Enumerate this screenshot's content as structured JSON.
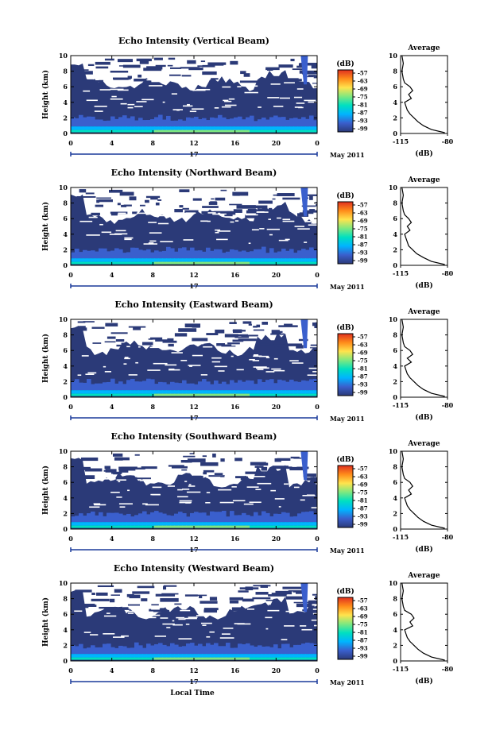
{
  "chart_data": [
    {
      "type": "heatmap",
      "title": "Echo Intensity (Vertical Beam)",
      "ylabel": "Height (km)",
      "xticks": [
        "0",
        "4",
        "8",
        "12",
        "16",
        "20",
        "0"
      ],
      "yticks": [
        "0",
        "2",
        "4",
        "6",
        "8",
        "10"
      ],
      "xlim": [
        0,
        24
      ],
      "ylim": [
        0,
        10
      ],
      "date_day": "17",
      "date_month": "May 2011",
      "colorbar": {
        "unit": "(dB)",
        "ticks": [
          "-57",
          "-63",
          "-69",
          "-75",
          "-81",
          "-87",
          "-93",
          "-99"
        ]
      },
      "profile": {
        "title": "Average",
        "xlabel": "(dB)",
        "xticks": [
          "-115",
          "-80"
        ],
        "xlim": [
          -115,
          -80
        ],
        "ylim": [
          0,
          10
        ],
        "yticks": [
          "0",
          "2",
          "4",
          "6",
          "8",
          "10"
        ],
        "height": [
          0.1,
          0.5,
          1,
          1.5,
          2,
          2.5,
          3,
          3.5,
          4,
          4.5,
          5,
          5.5,
          6,
          6.5,
          7,
          8,
          9,
          10
        ],
        "dB": [
          -82,
          -92,
          -98,
          -102,
          -105,
          -108,
          -110,
          -111,
          -112,
          -107,
          -109,
          -106,
          -108,
          -112,
          -113,
          -114,
          -113,
          -114
        ]
      }
    },
    {
      "type": "heatmap",
      "title": "Echo Intensity (Northward Beam)",
      "ylabel": "Height (km)",
      "xticks": [
        "0",
        "4",
        "8",
        "12",
        "16",
        "20",
        "0"
      ],
      "yticks": [
        "0",
        "2",
        "4",
        "6",
        "8",
        "10"
      ],
      "xlim": [
        0,
        24
      ],
      "ylim": [
        0,
        10
      ],
      "date_day": "17",
      "date_month": "May 2011",
      "colorbar": {
        "unit": "(dB)",
        "ticks": [
          "-57",
          "-63",
          "-69",
          "-75",
          "-81",
          "-87",
          "-93",
          "-99"
        ]
      },
      "profile": {
        "title": "Average",
        "xlabel": "(dB)",
        "xticks": [
          "-115",
          "-80"
        ],
        "xlim": [
          -115,
          -80
        ],
        "ylim": [
          0,
          10
        ],
        "yticks": [
          "0",
          "2",
          "4",
          "6",
          "8",
          "10"
        ],
        "height": [
          0.1,
          0.5,
          1,
          1.5,
          2,
          2.5,
          3,
          3.5,
          4,
          4.5,
          5,
          5.5,
          6,
          6.5,
          7,
          8,
          9,
          10
        ],
        "dB": [
          -82,
          -92,
          -98,
          -103,
          -106,
          -109,
          -110,
          -111,
          -112,
          -108,
          -110,
          -107,
          -109,
          -112,
          -113,
          -114,
          -113,
          -114
        ]
      }
    },
    {
      "type": "heatmap",
      "title": "Echo Intensity (Eastward Beam)",
      "ylabel": "Height (km)",
      "xticks": [
        "0",
        "4",
        "8",
        "12",
        "16",
        "20",
        "0"
      ],
      "yticks": [
        "0",
        "2",
        "4",
        "6",
        "8",
        "10"
      ],
      "xlim": [
        0,
        24
      ],
      "ylim": [
        0,
        10
      ],
      "date_day": "17",
      "date_month": "May 2011",
      "colorbar": {
        "unit": "(dB)",
        "ticks": [
          "-57",
          "-63",
          "-69",
          "-75",
          "-81",
          "-87",
          "-93",
          "-99"
        ]
      },
      "profile": {
        "title": "Average",
        "xlabel": "(dB)",
        "xticks": [
          "-115",
          "-80"
        ],
        "xlim": [
          -115,
          -80
        ],
        "ylim": [
          0,
          10
        ],
        "yticks": [
          "0",
          "2",
          "4",
          "6",
          "8",
          "10"
        ],
        "height": [
          0.1,
          0.5,
          1,
          1.5,
          2,
          2.5,
          3,
          3.5,
          4,
          4.5,
          5,
          5.5,
          6,
          6.5,
          7,
          8,
          9,
          10
        ],
        "dB": [
          -82,
          -92,
          -98,
          -102,
          -105,
          -108,
          -110,
          -111,
          -112,
          -107,
          -110,
          -106,
          -108,
          -112,
          -113,
          -114,
          -113,
          -114
        ]
      }
    },
    {
      "type": "heatmap",
      "title": "Echo Intensity (Southward Beam)",
      "ylabel": "Height (km)",
      "xticks": [
        "0",
        "4",
        "8",
        "12",
        "16",
        "20",
        "0"
      ],
      "yticks": [
        "0",
        "2",
        "4",
        "6",
        "8",
        "10"
      ],
      "xlim": [
        0,
        24
      ],
      "ylim": [
        0,
        10
      ],
      "date_day": "17",
      "date_month": "May 2011",
      "colorbar": {
        "unit": "(dB)",
        "ticks": [
          "-57",
          "-63",
          "-69",
          "-75",
          "-81",
          "-87",
          "-93",
          "-99"
        ]
      },
      "profile": {
        "title": "Average",
        "xlabel": "(dB)",
        "xticks": [
          "-115",
          "-80"
        ],
        "xlim": [
          -115,
          -80
        ],
        "ylim": [
          0,
          10
        ],
        "yticks": [
          "0",
          "2",
          "4",
          "6",
          "8",
          "10"
        ],
        "height": [
          0.1,
          0.5,
          1,
          1.5,
          2,
          2.5,
          3,
          3.5,
          4,
          4.5,
          5,
          5.5,
          6,
          6.5,
          7,
          8,
          9,
          10
        ],
        "dB": [
          -82,
          -92,
          -98,
          -102,
          -105,
          -108,
          -110,
          -111,
          -112,
          -107,
          -109,
          -106,
          -108,
          -112,
          -113,
          -114,
          -113,
          -114
        ]
      }
    },
    {
      "type": "heatmap",
      "title": "Echo Intensity (Westward Beam)",
      "ylabel": "Height (km)",
      "xticks": [
        "0",
        "4",
        "8",
        "12",
        "16",
        "20",
        "0"
      ],
      "yticks": [
        "0",
        "2",
        "4",
        "6",
        "8",
        "10"
      ],
      "xlim": [
        0,
        24
      ],
      "ylim": [
        0,
        10
      ],
      "date_day": "17",
      "date_month": "May 2011",
      "xlabel": "Local Time",
      "colorbar": {
        "unit": "(dB)",
        "ticks": [
          "-57",
          "-63",
          "-69",
          "-75",
          "-81",
          "-87",
          "-93",
          "-99"
        ]
      },
      "profile": {
        "title": "Average",
        "xlabel": "(dB)",
        "xticks": [
          "-115",
          "-80"
        ],
        "xlim": [
          -115,
          -80
        ],
        "ylim": [
          0,
          10
        ],
        "yticks": [
          "0",
          "2",
          "4",
          "6",
          "8",
          "10"
        ],
        "height": [
          0.1,
          0.5,
          1,
          1.5,
          2,
          2.5,
          3,
          3.5,
          4,
          4.5,
          5,
          5.5,
          6,
          6.5,
          7,
          8,
          9,
          10
        ],
        "dB": [
          -82,
          -92,
          -98,
          -102,
          -105,
          -108,
          -110,
          -111,
          -112,
          -106,
          -108,
          -105,
          -107,
          -112,
          -113,
          -114,
          -113,
          -114
        ]
      }
    }
  ],
  "colors": {
    "background_echo": "#2b3a78",
    "colormap": [
      "#2b3a78",
      "#3a5fcd",
      "#00b4ff",
      "#00e0c0",
      "#7fe87f",
      "#ffe34d",
      "#ff8c1a",
      "#e03020"
    ]
  }
}
